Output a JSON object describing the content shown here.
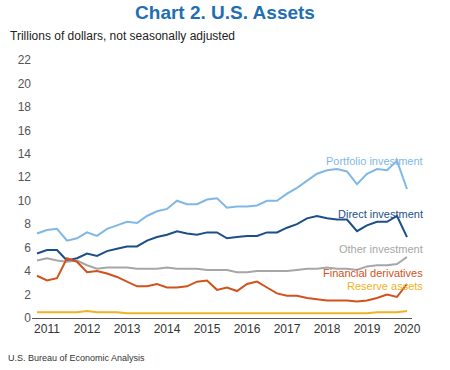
{
  "chart_data": {
    "type": "line",
    "title": "Chart 2. U.S. Assets",
    "subtitle": "Trillions of dollars, not seasonally adjusted",
    "source": "U.S. Bureau of Economic Analysis",
    "categories": [
      null,
      "2011",
      null,
      null,
      null,
      "2012",
      null,
      null,
      null,
      "2013",
      null,
      null,
      null,
      "2014",
      null,
      null,
      null,
      "2015",
      null,
      null,
      null,
      "2016",
      null,
      null,
      null,
      "2017",
      null,
      null,
      null,
      "2018",
      null,
      null,
      null,
      "2019",
      null,
      null,
      null,
      "2020"
    ],
    "series": [
      {
        "name": "Portfolio investment",
        "color": "#7fb8e6",
        "values": [
          7.2,
          7.5,
          7.6,
          6.6,
          6.8,
          7.3,
          7.0,
          7.6,
          7.9,
          8.2,
          8.1,
          8.7,
          9.1,
          9.3,
          10.0,
          9.7,
          9.7,
          10.1,
          10.2,
          9.4,
          9.5,
          9.5,
          9.6,
          10.0,
          10.0,
          10.6,
          11.1,
          11.7,
          12.3,
          12.6,
          12.7,
          12.5,
          11.4,
          12.3,
          12.7,
          12.6,
          13.4,
          11.0
        ]
      },
      {
        "name": "Direct investment",
        "color": "#1b4f8a",
        "values": [
          5.5,
          5.8,
          5.8,
          4.9,
          5.1,
          5.5,
          5.3,
          5.7,
          5.9,
          6.1,
          6.1,
          6.6,
          6.9,
          7.1,
          7.4,
          7.2,
          7.1,
          7.3,
          7.3,
          6.8,
          6.9,
          7.0,
          7.0,
          7.3,
          7.3,
          7.7,
          8.0,
          8.5,
          8.7,
          8.5,
          8.4,
          8.4,
          7.4,
          7.9,
          8.2,
          8.2,
          8.7,
          6.9
        ]
      },
      {
        "name": "Other investment",
        "color": "#a6a6a6",
        "values": [
          4.9,
          5.1,
          4.9,
          4.8,
          4.9,
          4.5,
          4.2,
          4.3,
          4.3,
          4.3,
          4.2,
          4.2,
          4.2,
          4.3,
          4.2,
          4.2,
          4.2,
          4.1,
          4.1,
          4.1,
          3.9,
          3.9,
          4.0,
          4.0,
          4.0,
          4.0,
          4.1,
          4.2,
          4.2,
          4.3,
          4.2,
          4.2,
          4.1,
          4.4,
          4.5,
          4.5,
          4.6,
          5.2
        ]
      },
      {
        "name": "Financial derivatives",
        "color": "#d2521c",
        "values": [
          3.6,
          3.2,
          3.4,
          5.1,
          4.8,
          3.9,
          4.0,
          3.8,
          3.5,
          3.1,
          2.7,
          2.7,
          2.9,
          2.6,
          2.6,
          2.7,
          3.1,
          3.2,
          2.4,
          2.6,
          2.3,
          2.9,
          3.1,
          2.6,
          2.1,
          1.9,
          1.9,
          1.7,
          1.6,
          1.5,
          1.5,
          1.5,
          1.4,
          1.5,
          1.7,
          2.0,
          1.8,
          2.9
        ]
      },
      {
        "name": "Reserve assets",
        "color": "#f0b323",
        "values": [
          0.5,
          0.5,
          0.5,
          0.5,
          0.5,
          0.6,
          0.5,
          0.5,
          0.5,
          0.4,
          0.4,
          0.4,
          0.4,
          0.4,
          0.4,
          0.4,
          0.4,
          0.4,
          0.4,
          0.4,
          0.4,
          0.4,
          0.4,
          0.4,
          0.4,
          0.4,
          0.4,
          0.4,
          0.4,
          0.4,
          0.4,
          0.4,
          0.4,
          0.4,
          0.5,
          0.5,
          0.5,
          0.6
        ]
      }
    ],
    "ylim": [
      0,
      22
    ],
    "yticks": [
      0,
      2,
      4,
      6,
      8,
      10,
      12,
      14,
      16,
      18,
      20,
      22
    ],
    "grid": false
  }
}
